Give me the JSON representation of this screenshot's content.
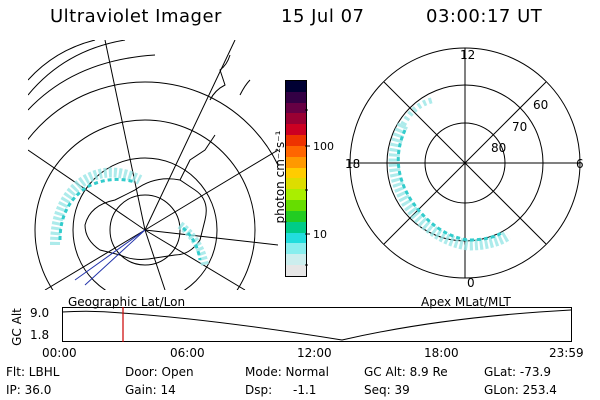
{
  "header": {
    "instrument": "Ultraviolet Imager",
    "date": "15 Jul 07",
    "time": "03:00:17 UT"
  },
  "left_panel": {
    "caption": "Geographic Lat/Lon"
  },
  "right_panel": {
    "caption": "Apex MLat/MLT",
    "mlt_labels": {
      "top": "12",
      "left": "18",
      "right": "6",
      "bottom": "0"
    },
    "lat_labels": [
      "60",
      "70",
      "80"
    ]
  },
  "colorbar": {
    "unit_label": "photon cm⁻²s⁻¹",
    "ticks": [
      "100",
      "10"
    ],
    "colors": [
      "#000033",
      "#330044",
      "#660044",
      "#990033",
      "#cc0022",
      "#ee3300",
      "#ff6600",
      "#ff9900",
      "#ffcc00",
      "#dddd00",
      "#aaee00",
      "#66dd00",
      "#22cc22",
      "#00cc88",
      "#22dddd",
      "#88eeee",
      "#cceeee",
      "#e6e6e6"
    ]
  },
  "timeline": {
    "axis_label": "GC Alt",
    "y_ticks": [
      "9.0",
      "1.8"
    ],
    "x_ticks": [
      "00:00",
      "06:00",
      "12:00",
      "18:00",
      "23:59"
    ],
    "marker_color": "#cc0000"
  },
  "status": {
    "flt": "Flt: LBHL",
    "door": "Door: Open",
    "mode": "Mode: Normal",
    "gc_alt": "GC Alt: 8.9 Re",
    "glat": "GLat: -73.9",
    "ip": "IP: 36.0",
    "gain": "Gain: 14",
    "dsp_label": "Dsp:",
    "dsp_value": "-1.1",
    "seq": "Seq: 39",
    "glon": "GLon: 253.4"
  },
  "colors": {
    "aurora": "#33cccc",
    "aurora_light": "#99e6e6",
    "line": "#000000",
    "coast_blue": "#2233aa"
  }
}
